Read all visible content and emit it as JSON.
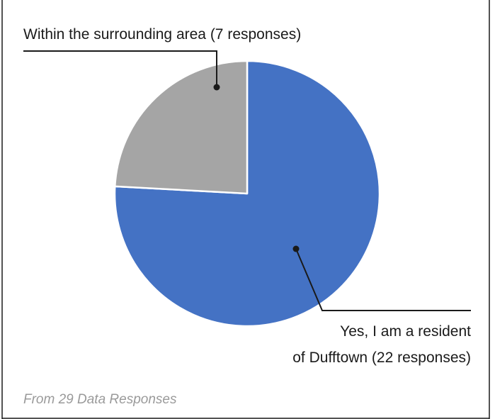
{
  "chart_data": {
    "type": "pie",
    "slices": [
      {
        "label": "Yes, I am a resident of Dufftown (22 responses)",
        "label_lines": [
          "Yes, I am a resident",
          "of Dufftown  (22 responses)"
        ],
        "value": 22,
        "color": "#4472C4"
      },
      {
        "label": "Within the surrounding area (7 responses)",
        "label_lines": [
          "Within the surrounding area (7 responses)"
        ],
        "value": 7,
        "color": "#A5A5A5"
      }
    ],
    "start_angle_deg": 0,
    "direction": "clockwise",
    "legend": "none",
    "grid": false
  },
  "footnote": "From 29 Data Responses"
}
